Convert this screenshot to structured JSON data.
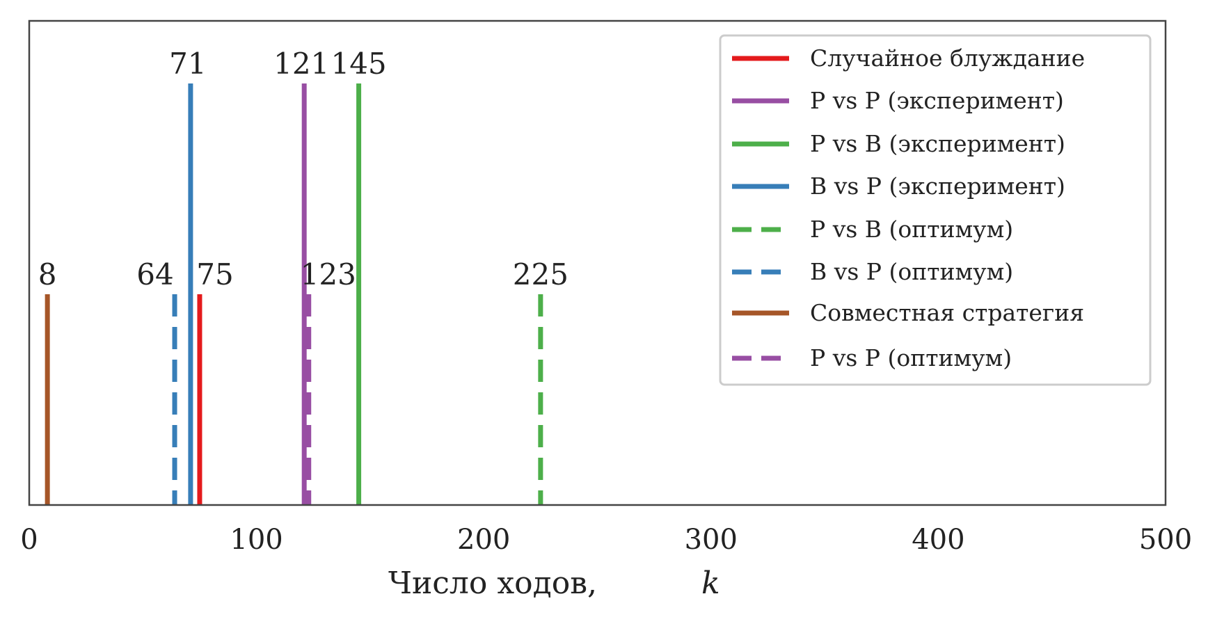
{
  "chart_data": {
    "type": "line",
    "title": "",
    "xlabel": "Число ходов,",
    "xlabel_var": "k",
    "ylabel": "",
    "xlim": [
      0,
      500
    ],
    "xticks": [
      0,
      100,
      200,
      300,
      400,
      500
    ],
    "grid": false,
    "legend_position": "top-right",
    "series": [
      {
        "name": "Случайное блуждание",
        "value": 75,
        "label": "75",
        "color": "#e41a1c",
        "style": "solid",
        "level": "low"
      },
      {
        "name": "P vs P (эксперимент)",
        "value": 121,
        "label": "121",
        "color": "#984ea3",
        "style": "solid",
        "level": "high"
      },
      {
        "name": "P vs B (эксперимент)",
        "value": 145,
        "label": "145",
        "color": "#4daf4a",
        "style": "solid",
        "level": "high"
      },
      {
        "name": "B vs P (эксперимент)",
        "value": 71,
        "label": "71",
        "color": "#377eb8",
        "style": "solid",
        "level": "high"
      },
      {
        "name": "P vs B (оптимум)",
        "value": 225,
        "label": "225",
        "color": "#4daf4a",
        "style": "dashed",
        "level": "low"
      },
      {
        "name": "B vs P (оптимум)",
        "value": 64,
        "label": "64",
        "color": "#377eb8",
        "style": "dashed",
        "level": "low"
      },
      {
        "name": "Совместная стратегия",
        "value": 8,
        "label": "8",
        "color": "#a65628",
        "style": "solid",
        "level": "low"
      },
      {
        "name": "P vs P (оптимум)",
        "value": 123,
        "label": "123",
        "color": "#984ea3",
        "style": "dashed",
        "level": "low"
      }
    ]
  }
}
